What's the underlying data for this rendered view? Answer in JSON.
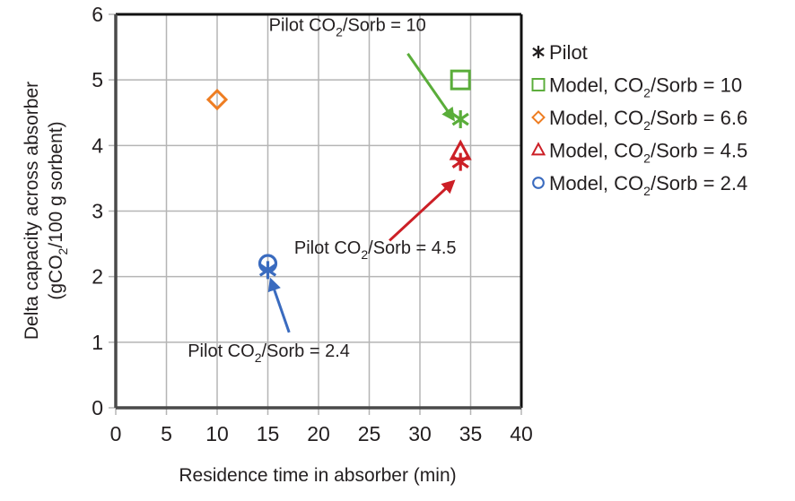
{
  "chart_data": {
    "type": "scatter",
    "title": "",
    "xlabel": "Residence time in absorber (min)",
    "ylabel": {
      "line1": "Delta capacity across absorber",
      "line2_pre": "(gCO",
      "line2_sub": "2",
      "line2_post": "/100 g sorbent)"
    },
    "xlim": [
      0,
      40
    ],
    "ylim": [
      0,
      6
    ],
    "xticks": [
      0,
      5,
      10,
      15,
      20,
      25,
      30,
      35,
      40
    ],
    "yticks": [
      0,
      1,
      2,
      3,
      4,
      5,
      6
    ],
    "grid": true,
    "legend_position": "right",
    "series": [
      {
        "name": "Pilot",
        "name_pre": "Pilot",
        "name_sub": "",
        "name_post": "",
        "marker": "asterisk",
        "color": "#231f20",
        "points": [
          {
            "x": 34,
            "y": 4.4,
            "color": "#5aad3a"
          },
          {
            "x": 34,
            "y": 3.75,
            "color": "#cc1f26"
          },
          {
            "x": 15,
            "y": 2.1,
            "color": "#3a6bbf"
          }
        ]
      },
      {
        "name": "Model, CO2/Sorb = 10",
        "name_pre": "Model, CO",
        "name_sub": "2",
        "name_post": "/Sorb = 10",
        "marker": "square",
        "color": "#5aad3a",
        "points": [
          {
            "x": 34,
            "y": 5.0
          }
        ]
      },
      {
        "name": "Model, CO2/Sorb = 6.6",
        "name_pre": "Model, CO",
        "name_sub": "2",
        "name_post": "/Sorb = 6.6",
        "marker": "diamond",
        "color": "#ee7d22",
        "points": [
          {
            "x": 10,
            "y": 4.7
          }
        ]
      },
      {
        "name": "Model, CO2/Sorb = 4.5",
        "name_pre": "Model, CO",
        "name_sub": "2",
        "name_post": "/Sorb = 4.5",
        "marker": "triangle",
        "color": "#cc1f26",
        "points": [
          {
            "x": 34,
            "y": 3.9
          }
        ]
      },
      {
        "name": "Model, CO2/Sorb = 2.4",
        "name_pre": "Model, CO",
        "name_sub": "2",
        "name_post": "/Sorb = 2.4",
        "marker": "circle",
        "color": "#3a6bbf",
        "points": [
          {
            "x": 15,
            "y": 2.2
          }
        ]
      }
    ],
    "annotations": [
      {
        "pre": "Pilot CO",
        "sub": "2",
        "post": "/Sorb = 10",
        "color": "#5aad3a",
        "text_at": {
          "x": 15.1,
          "y": 5.75
        },
        "arrow_from": {
          "x": 28.8,
          "y": 5.4
        },
        "arrow_to": {
          "x": 33.3,
          "y": 4.4
        }
      },
      {
        "pre": "Pilot CO",
        "sub": "2",
        "post": "/Sorb = 4.5",
        "color": "#cc1f26",
        "text_at": {
          "x": 17.6,
          "y": 2.35
        },
        "arrow_from": {
          "x": 27,
          "y": 2.55
        },
        "arrow_to": {
          "x": 33.3,
          "y": 3.45
        }
      },
      {
        "pre": "Pilot CO",
        "sub": "2",
        "post": "/Sorb = 2.4",
        "color": "#3a6bbf",
        "text_at": {
          "x": 7.1,
          "y": 0.78
        },
        "arrow_from": {
          "x": 17.1,
          "y": 1.15
        },
        "arrow_to": {
          "x": 15.3,
          "y": 1.95
        }
      }
    ]
  }
}
